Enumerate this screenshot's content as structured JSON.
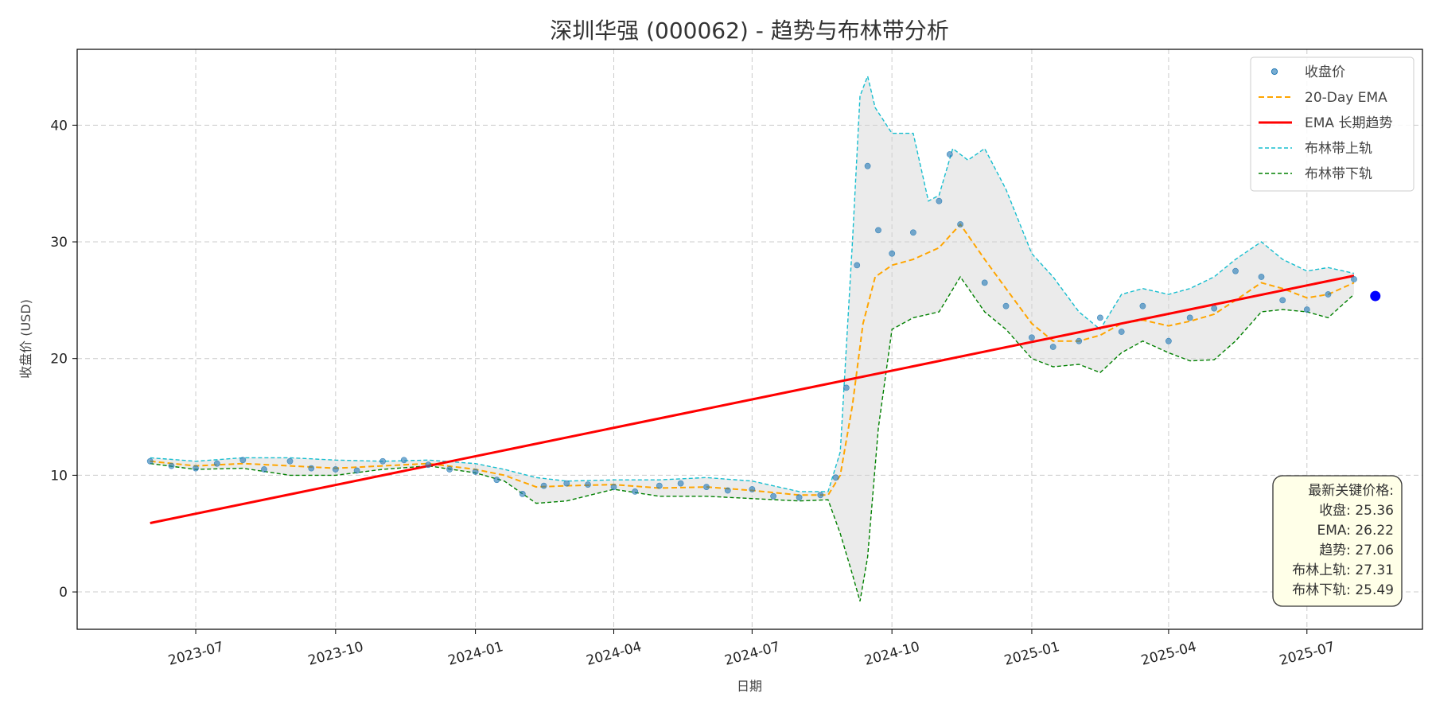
{
  "chart_data": {
    "type": "line",
    "title": "深圳华强 (000062) - 趋势与布林带分析",
    "xlabel": "日期",
    "ylabel": "收盘价 (USD)",
    "x_ticks": [
      "2023-07",
      "2023-10",
      "2024-01",
      "2024-04",
      "2024-07",
      "2024-10",
      "2025-01",
      "2025-04",
      "2025-07"
    ],
    "y_ticks": [
      0,
      10,
      20,
      30,
      40
    ],
    "xlim": [
      "2023-04-14",
      "2025-09-15"
    ],
    "ylim": [
      -3.2,
      46.5
    ],
    "grid": true,
    "legend_position": "top-right",
    "legend": [
      "收盘价",
      "20-Day EMA",
      "EMA 长期趋势",
      "布林带上轨",
      "布林带下轨"
    ],
    "colors": {
      "close": "#1f77b4",
      "ema": "#ffa500",
      "trend": "#ff0000",
      "upper": "#17becf",
      "lower": "#008000",
      "band_fill": "#d3d3d3",
      "latest_point": "#0000ff",
      "info_box_bg": "#ffffe8"
    },
    "series": [
      {
        "name": "收盘价",
        "kind": "scatter",
        "x": [
          "2023-06-01",
          "2023-06-15",
          "2023-07-01",
          "2023-07-15",
          "2023-08-01",
          "2023-08-15",
          "2023-09-01",
          "2023-09-15",
          "2023-10-01",
          "2023-10-15",
          "2023-11-01",
          "2023-11-15",
          "2023-12-01",
          "2023-12-15",
          "2024-01-01",
          "2024-01-15",
          "2024-02-01",
          "2024-02-15",
          "2024-03-01",
          "2024-03-15",
          "2024-04-01",
          "2024-04-15",
          "2024-05-01",
          "2024-05-15",
          "2024-06-01",
          "2024-06-15",
          "2024-07-01",
          "2024-07-15",
          "2024-08-01",
          "2024-08-15",
          "2024-08-25",
          "2024-09-01",
          "2024-09-08",
          "2024-09-15",
          "2024-09-22",
          "2024-10-01",
          "2024-10-15",
          "2024-11-01",
          "2024-11-08",
          "2024-11-15",
          "2024-12-01",
          "2024-12-15",
          "2025-01-01",
          "2025-01-15",
          "2025-02-01",
          "2025-02-15",
          "2025-03-01",
          "2025-03-15",
          "2025-04-01",
          "2025-04-15",
          "2025-05-01",
          "2025-05-15",
          "2025-06-01",
          "2025-06-15",
          "2025-07-01",
          "2025-07-15",
          "2025-08-01"
        ],
        "values": [
          11.2,
          10.8,
          10.6,
          11.0,
          11.3,
          10.5,
          11.2,
          10.6,
          10.5,
          10.4,
          11.2,
          11.3,
          10.9,
          10.5,
          10.3,
          9.6,
          8.4,
          9.1,
          9.3,
          9.2,
          9.0,
          8.6,
          9.1,
          9.3,
          9.0,
          8.7,
          8.8,
          8.2,
          8.1,
          8.3,
          9.8,
          17.5,
          28.0,
          36.5,
          31.0,
          29.0,
          30.8,
          33.5,
          37.5,
          31.5,
          26.5,
          24.5,
          21.8,
          21.0,
          21.5,
          23.5,
          22.3,
          24.5,
          21.5,
          23.5,
          24.3,
          27.5,
          27.0,
          25.0,
          24.2,
          25.5,
          26.8
        ]
      },
      {
        "name": "20-Day EMA",
        "kind": "line",
        "x": [
          "2023-06-01",
          "2023-07-01",
          "2023-08-01",
          "2023-09-01",
          "2023-10-01",
          "2023-11-01",
          "2023-12-01",
          "2024-01-01",
          "2024-01-20",
          "2024-02-10",
          "2024-03-01",
          "2024-04-01",
          "2024-05-01",
          "2024-06-01",
          "2024-07-01",
          "2024-08-01",
          "2024-08-20",
          "2024-08-28",
          "2024-09-05",
          "2024-09-12",
          "2024-09-20",
          "2024-10-01",
          "2024-10-15",
          "2024-11-01",
          "2024-11-15",
          "2024-12-01",
          "2024-12-15",
          "2025-01-01",
          "2025-01-15",
          "2025-02-01",
          "2025-02-15",
          "2025-03-01",
          "2025-03-15",
          "2025-04-01",
          "2025-04-15",
          "2025-05-01",
          "2025-05-15",
          "2025-06-01",
          "2025-06-15",
          "2025-07-01",
          "2025-07-15",
          "2025-08-01"
        ],
        "values": [
          11.2,
          10.8,
          11.0,
          10.8,
          10.6,
          10.8,
          11.0,
          10.5,
          10.0,
          9.0,
          9.1,
          9.2,
          8.9,
          9.0,
          8.7,
          8.3,
          8.3,
          10.0,
          16.0,
          23.0,
          27.0,
          28.0,
          28.5,
          29.5,
          31.5,
          28.5,
          26.0,
          23.0,
          21.5,
          21.5,
          22.0,
          23.0,
          23.3,
          22.8,
          23.2,
          23.8,
          25.0,
          26.5,
          26.0,
          25.2,
          25.5,
          26.5
        ]
      },
      {
        "name": "EMA 长期趋势",
        "kind": "line",
        "x": [
          "2023-06-01",
          "2025-08-01"
        ],
        "values": [
          5.9,
          27.1
        ]
      },
      {
        "name": "布林带上轨",
        "kind": "line",
        "x": [
          "2023-06-01",
          "2023-07-01",
          "2023-08-01",
          "2023-09-01",
          "2023-10-01",
          "2023-11-01",
          "2023-12-01",
          "2024-01-01",
          "2024-01-20",
          "2024-02-10",
          "2024-03-01",
          "2024-04-01",
          "2024-05-01",
          "2024-06-01",
          "2024-07-01",
          "2024-08-01",
          "2024-08-20",
          "2024-08-28",
          "2024-09-05",
          "2024-09-10",
          "2024-09-15",
          "2024-09-20",
          "2024-10-01",
          "2024-10-15",
          "2024-10-25",
          "2024-11-01",
          "2024-11-10",
          "2024-11-20",
          "2024-12-01",
          "2024-12-15",
          "2025-01-01",
          "2025-01-15",
          "2025-02-01",
          "2025-02-15",
          "2025-03-01",
          "2025-03-15",
          "2025-04-01",
          "2025-04-15",
          "2025-05-01",
          "2025-05-15",
          "2025-06-01",
          "2025-06-15",
          "2025-07-01",
          "2025-07-15",
          "2025-08-01"
        ],
        "values": [
          11.5,
          11.2,
          11.5,
          11.5,
          11.3,
          11.2,
          11.3,
          11.0,
          10.5,
          9.8,
          9.5,
          9.6,
          9.6,
          9.8,
          9.5,
          8.6,
          8.6,
          12.0,
          30.0,
          42.5,
          44.2,
          41.5,
          39.3,
          39.3,
          33.5,
          34.0,
          38.0,
          37.0,
          38.0,
          34.5,
          29.0,
          27.0,
          24.0,
          22.5,
          25.5,
          26.0,
          25.5,
          26.0,
          27.0,
          28.5,
          30.0,
          28.5,
          27.5,
          27.8,
          27.3
        ]
      },
      {
        "name": "布林带下轨",
        "kind": "line",
        "x": [
          "2023-06-01",
          "2023-07-01",
          "2023-08-01",
          "2023-09-01",
          "2023-10-01",
          "2023-11-01",
          "2023-12-01",
          "2024-01-01",
          "2024-01-20",
          "2024-02-10",
          "2024-03-01",
          "2024-04-01",
          "2024-05-01",
          "2024-06-01",
          "2024-07-01",
          "2024-08-01",
          "2024-08-20",
          "2024-08-28",
          "2024-09-05",
          "2024-09-10",
          "2024-09-15",
          "2024-09-22",
          "2024-10-01",
          "2024-10-15",
          "2024-11-01",
          "2024-11-15",
          "2024-12-01",
          "2024-12-15",
          "2025-01-01",
          "2025-01-15",
          "2025-02-01",
          "2025-02-15",
          "2025-03-01",
          "2025-03-15",
          "2025-04-01",
          "2025-04-15",
          "2025-05-01",
          "2025-05-15",
          "2025-06-01",
          "2025-06-15",
          "2025-07-01",
          "2025-07-15",
          "2025-08-01"
        ],
        "values": [
          11.0,
          10.5,
          10.6,
          10.0,
          10.0,
          10.5,
          10.8,
          10.2,
          9.5,
          7.6,
          7.8,
          8.8,
          8.2,
          8.2,
          8.0,
          7.8,
          7.9,
          5.0,
          1.5,
          -0.8,
          3.0,
          14.0,
          22.5,
          23.5,
          24.0,
          27.0,
          24.0,
          22.5,
          20.0,
          19.3,
          19.5,
          18.8,
          20.5,
          21.5,
          20.5,
          19.8,
          19.9,
          21.5,
          24.0,
          24.2,
          24.0,
          23.5,
          25.5
        ]
      }
    ],
    "latest_point": {
      "x": "2025-08-15",
      "y": 25.36
    },
    "info_box": {
      "lines": [
        "最新关键价格:",
        "收盘: 25.36",
        "EMA: 26.22",
        "趋势: 27.06",
        "布林上轨: 27.31",
        "布林下轨: 25.49"
      ]
    }
  }
}
